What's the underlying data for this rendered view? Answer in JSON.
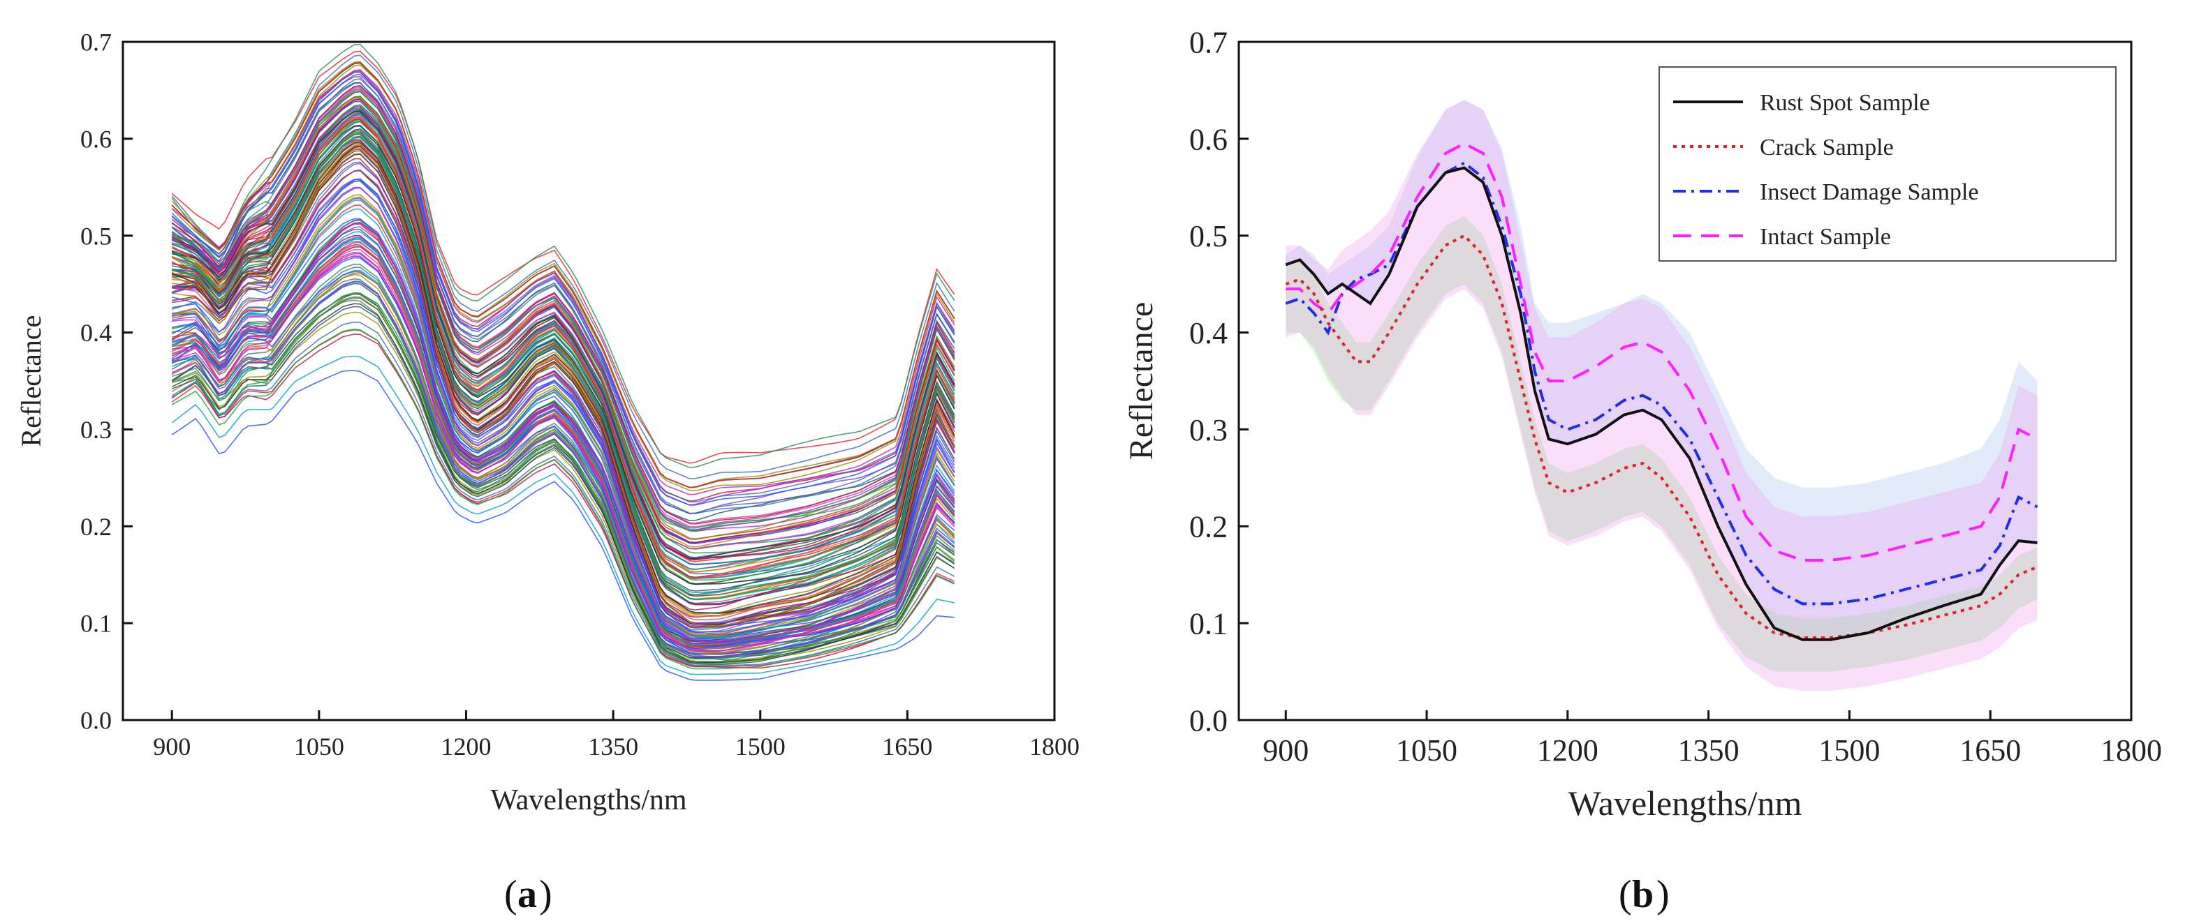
{
  "chart_data": [
    {
      "type": "line",
      "panel": "a",
      "caption_open": "(",
      "caption_letter": "a",
      "caption_close": ")",
      "title": "",
      "xlabel": "Wavelengths/nm",
      "ylabel": "Reflectance",
      "xlim": [
        850,
        1800
      ],
      "ylim": [
        0.0,
        0.7
      ],
      "xticks": [
        900,
        1050,
        1200,
        1350,
        1500,
        1650,
        1800
      ],
      "yticks": [
        0.0,
        0.1,
        0.2,
        0.3,
        0.4,
        0.5,
        0.6,
        0.7
      ],
      "series_count": 160,
      "x": [
        900,
        925,
        950,
        975,
        1000,
        1025,
        1050,
        1075,
        1090,
        1110,
        1130,
        1150,
        1170,
        1190,
        1210,
        1240,
        1270,
        1290,
        1310,
        1340,
        1370,
        1400,
        1430,
        1460,
        1500,
        1550,
        1600,
        1640,
        1660,
        1680,
        1700
      ],
      "mean": [
        0.45,
        0.45,
        0.42,
        0.46,
        0.46,
        0.5,
        0.55,
        0.58,
        0.59,
        0.57,
        0.53,
        0.47,
        0.38,
        0.32,
        0.3,
        0.32,
        0.36,
        0.37,
        0.35,
        0.3,
        0.2,
        0.12,
        0.1,
        0.1,
        0.11,
        0.12,
        0.14,
        0.16,
        0.25,
        0.32,
        0.28
      ],
      "min": [
        0.29,
        0.31,
        0.27,
        0.3,
        0.3,
        0.33,
        0.34,
        0.35,
        0.35,
        0.34,
        0.31,
        0.28,
        0.24,
        0.21,
        0.2,
        0.21,
        0.23,
        0.24,
        0.22,
        0.17,
        0.1,
        0.05,
        0.04,
        0.04,
        0.04,
        0.05,
        0.06,
        0.07,
        0.08,
        0.1,
        0.1
      ],
      "max": [
        0.55,
        0.52,
        0.5,
        0.55,
        0.58,
        0.62,
        0.67,
        0.69,
        0.7,
        0.68,
        0.65,
        0.59,
        0.5,
        0.45,
        0.44,
        0.46,
        0.48,
        0.49,
        0.46,
        0.4,
        0.33,
        0.28,
        0.27,
        0.28,
        0.28,
        0.29,
        0.3,
        0.32,
        0.4,
        0.47,
        0.44
      ]
    },
    {
      "type": "line",
      "panel": "b",
      "caption_open": "(",
      "caption_letter": "b",
      "caption_close": ")",
      "title": "",
      "xlabel": "Wavelengths/nm",
      "ylabel": "Reflectance",
      "xlim": [
        850,
        1800
      ],
      "ylim": [
        0.0,
        0.7
      ],
      "xticks": [
        900,
        1050,
        1200,
        1350,
        1500,
        1650,
        1800
      ],
      "yticks": [
        0.0,
        0.1,
        0.2,
        0.3,
        0.4,
        0.5,
        0.6,
        0.7
      ],
      "legend_position": "top-right",
      "x": [
        900,
        915,
        930,
        945,
        960,
        975,
        990,
        1010,
        1040,
        1070,
        1090,
        1110,
        1130,
        1150,
        1165,
        1180,
        1200,
        1230,
        1260,
        1280,
        1300,
        1330,
        1360,
        1390,
        1420,
        1450,
        1480,
        1520,
        1560,
        1600,
        1640,
        1660,
        1680,
        1700
      ],
      "series": [
        {
          "name": "Rust Spot Sample",
          "color": "#111111",
          "dash": "solid",
          "values": [
            0.47,
            0.475,
            0.46,
            0.44,
            0.45,
            0.44,
            0.43,
            0.46,
            0.53,
            0.565,
            0.57,
            0.555,
            0.5,
            0.42,
            0.34,
            0.29,
            0.285,
            0.295,
            0.315,
            0.32,
            0.31,
            0.27,
            0.2,
            0.14,
            0.095,
            0.083,
            0.083,
            0.09,
            0.105,
            0.118,
            0.13,
            0.16,
            0.185,
            0.183
          ],
          "band": 0.0
        },
        {
          "name": "Crack Sample",
          "color": "#e0202a",
          "dash": "dot",
          "values": [
            0.45,
            0.455,
            0.44,
            0.41,
            0.39,
            0.37,
            0.37,
            0.4,
            0.45,
            0.49,
            0.5,
            0.48,
            0.43,
            0.35,
            0.29,
            0.245,
            0.235,
            0.245,
            0.26,
            0.265,
            0.25,
            0.21,
            0.15,
            0.11,
            0.09,
            0.085,
            0.085,
            0.09,
            0.098,
            0.108,
            0.118,
            0.13,
            0.15,
            0.158
          ],
          "band": 0.055
        },
        {
          "name": "Insect Damage Sample",
          "color": "#1f2fe8",
          "dash": "dashdot",
          "values": [
            0.43,
            0.435,
            0.42,
            0.4,
            0.44,
            0.455,
            0.46,
            0.47,
            0.53,
            0.565,
            0.575,
            0.56,
            0.51,
            0.44,
            0.36,
            0.31,
            0.3,
            0.31,
            0.33,
            0.335,
            0.325,
            0.29,
            0.23,
            0.17,
            0.135,
            0.12,
            0.12,
            0.125,
            0.135,
            0.145,
            0.155,
            0.18,
            0.23,
            0.22
          ],
          "band": 0.0
        },
        {
          "name": "Intact Sample",
          "color": "#ff20ff",
          "dash": "dash",
          "values": [
            0.445,
            0.445,
            0.43,
            0.42,
            0.44,
            0.45,
            0.46,
            0.48,
            0.54,
            0.585,
            0.595,
            0.585,
            0.54,
            0.45,
            0.38,
            0.35,
            0.35,
            0.365,
            0.385,
            0.39,
            0.38,
            0.34,
            0.28,
            0.21,
            0.175,
            0.165,
            0.165,
            0.17,
            0.18,
            0.19,
            0.2,
            0.23,
            0.3,
            0.29
          ],
          "band": 0.045
        }
      ],
      "bands": [
        {
          "name": "upper-blue-band",
          "color": "#bcd2f5",
          "upper": [
            0.48,
            0.49,
            0.48,
            0.46,
            0.47,
            0.48,
            0.49,
            0.51,
            0.58,
            0.63,
            0.64,
            0.63,
            0.59,
            0.51,
            0.43,
            0.41,
            0.41,
            0.42,
            0.43,
            0.44,
            0.43,
            0.4,
            0.34,
            0.28,
            0.25,
            0.24,
            0.24,
            0.245,
            0.255,
            0.265,
            0.28,
            0.31,
            0.37,
            0.35
          ]
        },
        {
          "name": "lower-green-band",
          "color": "#9ff09a",
          "lower": [
            0.4,
            0.4,
            0.38,
            0.35,
            0.33,
            0.32,
            0.32,
            0.35,
            0.4,
            0.44,
            0.45,
            0.43,
            0.38,
            0.3,
            0.24,
            0.195,
            0.185,
            0.195,
            0.21,
            0.215,
            0.2,
            0.16,
            0.1,
            0.065,
            0.05,
            0.05,
            0.05,
            0.055,
            0.062,
            0.072,
            0.082,
            0.095,
            0.115,
            0.125
          ]
        }
      ]
    }
  ]
}
